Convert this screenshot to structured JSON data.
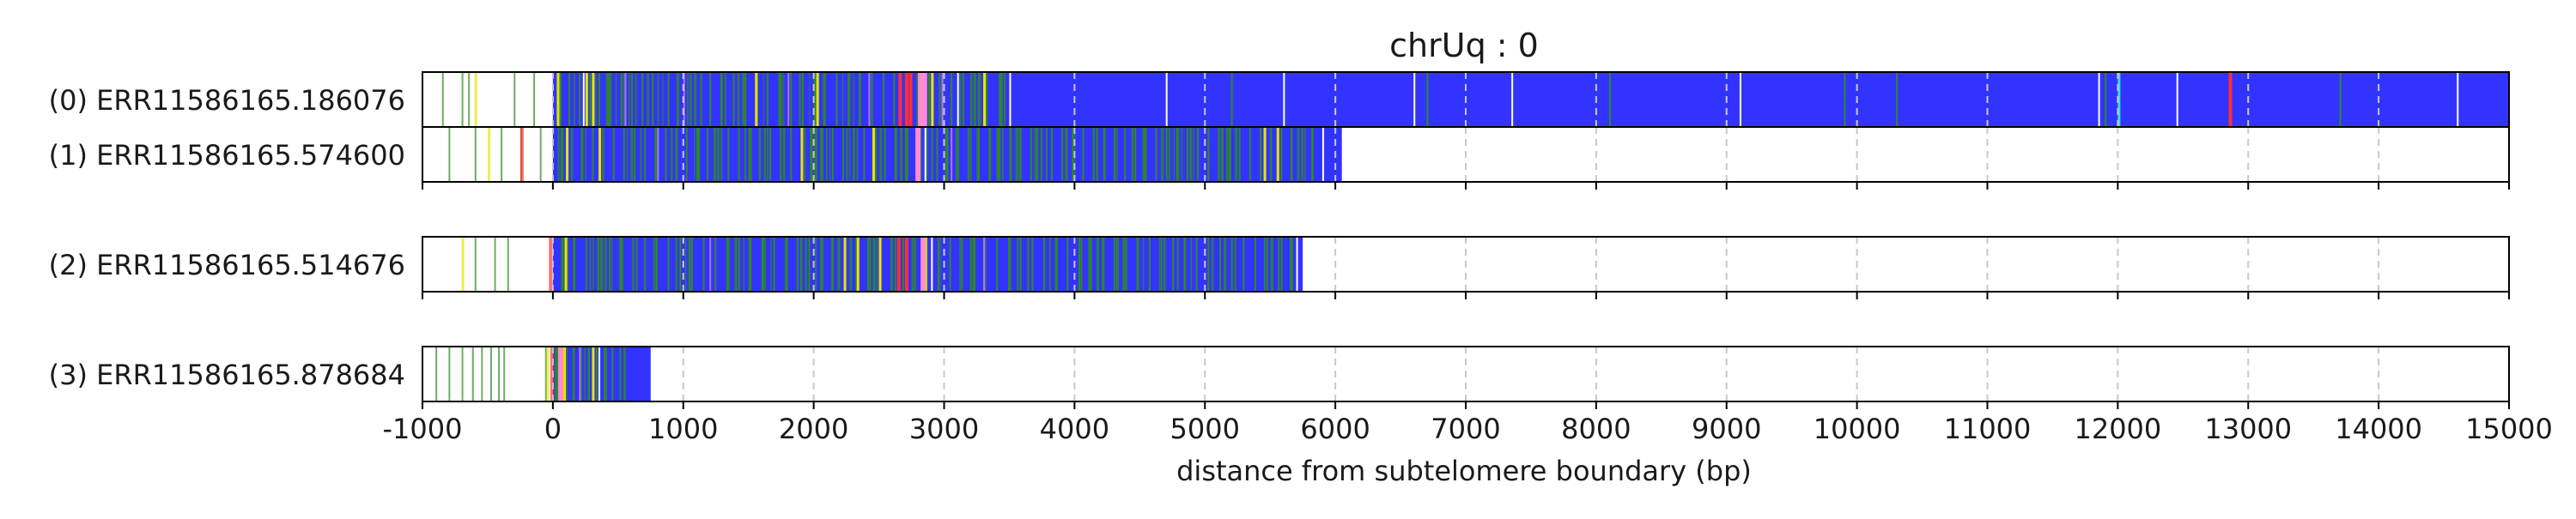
{
  "chart_data": {
    "type": "track",
    "title": "chrUq : 0",
    "xlabel": "distance from subtelomere boundary (bp)",
    "xlim": [
      -1000,
      15000
    ],
    "xticks": [
      -1000,
      0,
      1000,
      2000,
      3000,
      4000,
      5000,
      6000,
      7000,
      8000,
      9000,
      10000,
      11000,
      12000,
      13000,
      14000,
      15000
    ],
    "grid": "vertical dashed at ticks",
    "colors": {
      "repeat": "#3333ff",
      "variant_green": "#2e8b1e",
      "variant_yellow": "#e6e600",
      "variant_red": "#ff3030",
      "variant_pink": "#ff8cd0",
      "variant_cyan": "#30e0e0",
      "variant_purple": "#b070ff",
      "grid": "#c8c8c8",
      "frame": "#000000"
    },
    "reads": [
      {
        "label": "(0) ERR11586165.186076",
        "read_end": 15000,
        "repeat_start": 0,
        "green_density_end": 3500,
        "green_marks": [
          -850,
          -700,
          -650,
          -300,
          -150,
          50,
          120,
          200,
          280,
          350,
          420,
          520,
          600,
          680,
          760,
          880,
          950,
          1050,
          1130,
          1200,
          1290,
          1380,
          1470,
          1560,
          1640,
          1730,
          1820,
          1910,
          2000,
          2080,
          2170,
          2260,
          2350,
          2440,
          2530,
          2610,
          2700,
          2790,
          2880,
          2960,
          3050,
          3140,
          3230,
          3320,
          3420,
          5200,
          6700,
          8100,
          9900,
          10300,
          11900,
          13700
        ],
        "yellow_marks": [
          -600,
          30,
          250,
          300,
          1550,
          2020,
          2900,
          3300
        ],
        "red_marks": [
          2650,
          2700,
          2730,
          12850
        ],
        "pink_marks": [
          2800,
          2830
        ],
        "cyan_marks": [
          12000
        ],
        "white_marks": [
          230,
          3100,
          3500,
          4700,
          5600,
          6600,
          7350,
          9100,
          11850,
          12450,
          14600
        ],
        "purple_marks": [
          550,
          1000,
          1800,
          2420,
          2980
        ]
      },
      {
        "label": "(1) ERR11586165.574600",
        "read_end": 6050,
        "repeat_start": 0,
        "green_density_end": 5950,
        "green_marks": [
          -800,
          -600,
          -400,
          -250,
          -100,
          60,
          140,
          220,
          300,
          380,
          460,
          540,
          620,
          700,
          780,
          860,
          940,
          1020,
          1100,
          1180,
          1260,
          1340,
          1420,
          1500,
          1580,
          1660,
          1740,
          1820,
          1900,
          1980,
          2060,
          2140,
          2220,
          2300,
          2380,
          2460,
          2540,
          2620,
          2700,
          2780,
          2860,
          2940,
          3020,
          3100,
          3180,
          3260,
          3340,
          3420,
          3500,
          3580,
          3660,
          3740,
          3820,
          3900,
          3980,
          4060,
          4140,
          4220,
          4300,
          4380,
          4460,
          4540,
          4620,
          4700,
          4780,
          4860,
          4940,
          5020,
          5100,
          5180,
          5260,
          5340,
          5420,
          5500,
          5580,
          5660,
          5740,
          5820,
          5900
        ],
        "yellow_marks": [
          -500,
          100,
          350,
          1900,
          2450,
          5450,
          5550
        ],
        "red_marks": [
          -250
        ],
        "pink_marks": [
          2780
        ],
        "cyan_marks": [],
        "white_marks": [
          2850,
          5900
        ],
        "purple_marks": [
          800,
          3050
        ]
      },
      {
        "label": "(2) ERR11586165.514676",
        "read_end": 5750,
        "repeat_start": 0,
        "green_density_end": 5700,
        "green_marks": [
          -600,
          -450,
          -350,
          70,
          160,
          250,
          340,
          430,
          520,
          610,
          700,
          790,
          880,
          970,
          1060,
          1150,
          1240,
          1330,
          1420,
          1510,
          1600,
          1690,
          1780,
          1870,
          1960,
          2050,
          2140,
          2230,
          2320,
          2410,
          2500,
          2590,
          2680,
          2770,
          2860,
          2950,
          3040,
          3130,
          3220,
          3310,
          3400,
          3490,
          3580,
          3670,
          3760,
          3850,
          3940,
          4030,
          4120,
          4210,
          4300,
          4390,
          4480,
          4570,
          4660,
          4750,
          4840,
          4930,
          5020,
          5110,
          5200,
          5290,
          5380,
          5470,
          5560,
          5650
        ],
        "yellow_marks": [
          -700,
          90,
          2230,
          2330,
          2500,
          2850
        ],
        "red_marks": [
          -30,
          2640,
          2700
        ],
        "pink_marks": [
          2820
        ],
        "cyan_marks": [],
        "white_marks": [
          2900,
          5700
        ],
        "purple_marks": [
          1200,
          3300
        ]
      },
      {
        "label": "(3) ERR11586165.878684",
        "read_end": 750,
        "repeat_start": 0,
        "green_density_end": 700,
        "green_marks": [
          -900,
          -800,
          -700,
          -620,
          -550,
          -480,
          -420,
          -380,
          -60,
          30,
          90,
          150,
          210,
          270,
          330,
          390,
          450,
          510
        ],
        "yellow_marks": [
          -50,
          80,
          300
        ],
        "red_marks": [
          -20
        ],
        "pink_marks": [
          40
        ],
        "cyan_marks": [],
        "white_marks": [
          350
        ],
        "purple_marks": [
          200
        ]
      }
    ]
  }
}
